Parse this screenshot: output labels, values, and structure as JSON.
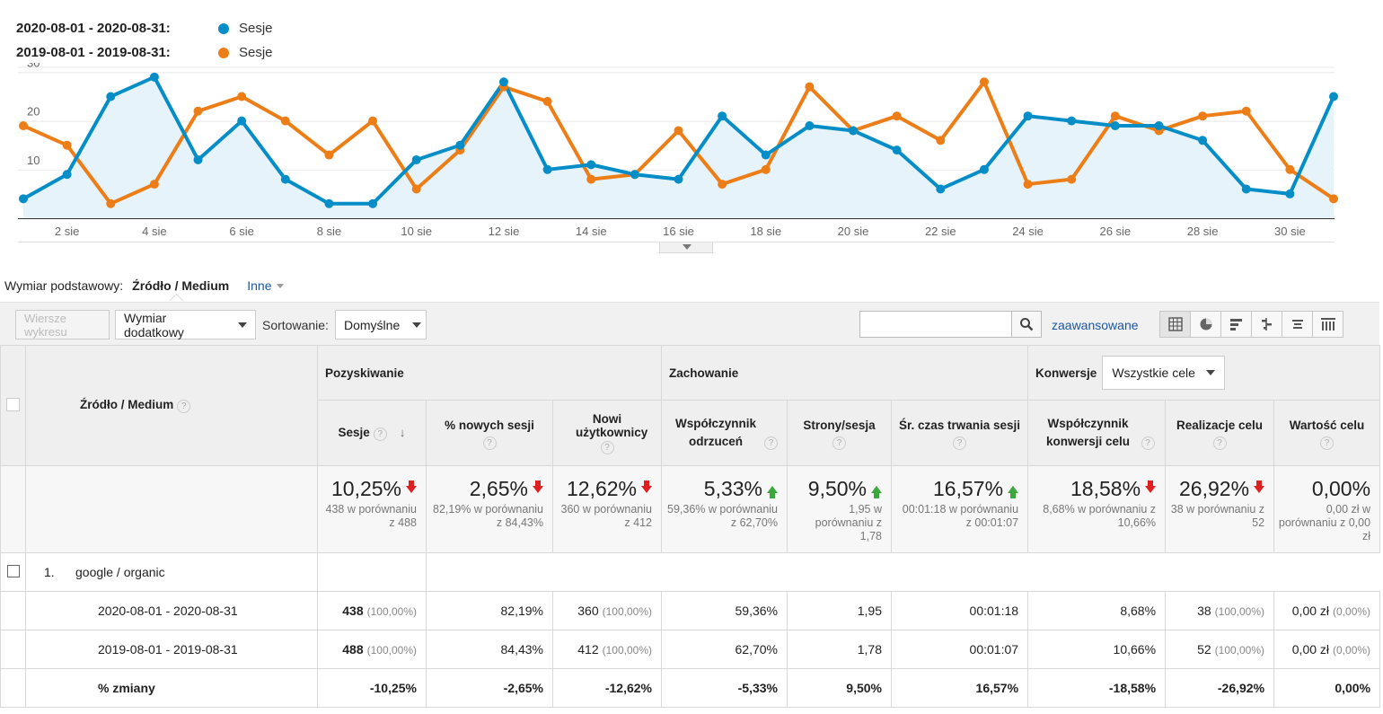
{
  "legend": [
    {
      "range": "2020-08-01 - 2020-08-31:",
      "name": "Sesje",
      "color": "#058dc7"
    },
    {
      "range": "2019-08-01 - 2019-08-31:",
      "name": "Sesje",
      "color": "#ed7e17"
    }
  ],
  "chart_data": {
    "type": "line",
    "x": [
      1,
      2,
      3,
      4,
      5,
      6,
      7,
      8,
      9,
      10,
      11,
      12,
      13,
      14,
      15,
      16,
      17,
      18,
      19,
      20,
      21,
      22,
      23,
      24,
      25,
      26,
      27,
      28,
      29,
      30,
      31
    ],
    "xticks": [
      "2 sie",
      "4 sie",
      "6 sie",
      "8 sie",
      "10 sie",
      "12 sie",
      "14 sie",
      "16 sie",
      "18 sie",
      "20 sie",
      "22 sie",
      "24 sie",
      "26 sie",
      "28 sie",
      "30 sie"
    ],
    "xtick_days": [
      2,
      4,
      6,
      8,
      10,
      12,
      14,
      16,
      18,
      20,
      22,
      24,
      26,
      28,
      30
    ],
    "yticks": [
      10,
      20,
      30
    ],
    "ylim": [
      0,
      31
    ],
    "series": [
      {
        "name": "Sesje",
        "color": "#058dc7",
        "values": [
          4,
          9,
          25,
          29,
          12,
          20,
          8,
          3,
          3,
          12,
          15,
          28,
          10,
          11,
          9,
          8,
          21,
          13,
          19,
          18,
          14,
          6,
          10,
          21,
          20,
          19,
          19,
          16,
          6,
          5,
          25
        ]
      },
      {
        "name": "Sesje",
        "color": "#ed7e17",
        "values": [
          19,
          15,
          3,
          7,
          22,
          25,
          20,
          13,
          20,
          6,
          14,
          27,
          24,
          8,
          9,
          18,
          7,
          10,
          27,
          18,
          21,
          16,
          28,
          7,
          8,
          21,
          18,
          21,
          22,
          10,
          4
        ]
      }
    ]
  },
  "dimension": {
    "label": "Wymiar podstawowy:",
    "active": "Źródło / Medium",
    "other": "Inne"
  },
  "toolbar": {
    "plot_rows": "Wiersze wykresu",
    "secondary": "Wymiar dodatkowy",
    "sort_label": "Sortowanie:",
    "sort_value": "Domyślne",
    "advanced": "zaawansowane",
    "views": [
      "table-icon",
      "pie-icon",
      "bar-icon",
      "comparison-icon",
      "term-cloud-icon",
      "pivot-icon"
    ]
  },
  "table": {
    "dim_header": "Źródło / Medium",
    "groups": {
      "acq": "Pozyskiwanie",
      "beh": "Zachowanie",
      "conv": "Konwersje",
      "conv_select": "Wszystkie cele"
    },
    "cols": [
      "Sesje",
      "% nowych sesji",
      "Nowi użytkownicy",
      "Współczynnik odrzuceń",
      "Strony/sesja",
      "Śr. czas trwania sesji",
      "Współczynnik konwersji celu",
      "Realizacje celu",
      "Wartość celu"
    ],
    "summary": [
      {
        "value": "10,25%",
        "dir": "down",
        "sub": "438 w porównaniu z 488"
      },
      {
        "value": "2,65%",
        "dir": "down",
        "sub": "82,19% w porównaniu z 84,43%"
      },
      {
        "value": "12,62%",
        "dir": "down",
        "sub": "360 w porównaniu z 412"
      },
      {
        "value": "5,33%",
        "dir": "up",
        "sub": "59,36% w porównaniu z 62,70%"
      },
      {
        "value": "9,50%",
        "dir": "up",
        "sub": "1,95 w porównaniu z 1,78"
      },
      {
        "value": "16,57%",
        "dir": "up",
        "sub": "00:01:18 w porównaniu z 00:01:07"
      },
      {
        "value": "18,58%",
        "dir": "down",
        "sub": "8,68% w porównaniu z 10,66%"
      },
      {
        "value": "26,92%",
        "dir": "down",
        "sub": "38 w porównaniu z 52"
      },
      {
        "value": "0,00%",
        "dir": "",
        "sub": "0,00 zł w porównaniu z 0,00 zł"
      }
    ],
    "row_index": "1.",
    "row_name": "google / organic",
    "rows": [
      {
        "label": "2020-08-01 - 2020-08-31",
        "cells": [
          [
            "438",
            "(100,00%)"
          ],
          [
            "82,19%",
            ""
          ],
          [
            "360",
            "(100,00%)"
          ],
          [
            "59,36%",
            ""
          ],
          [
            "1,95",
            ""
          ],
          [
            "00:01:18",
            ""
          ],
          [
            "8,68%",
            ""
          ],
          [
            "38",
            "(100,00%)"
          ],
          [
            "0,00 zł",
            "(0,00%)"
          ]
        ]
      },
      {
        "label": "2019-08-01 - 2019-08-31",
        "cells": [
          [
            "488",
            "(100,00%)"
          ],
          [
            "84,43%",
            ""
          ],
          [
            "412",
            "(100,00%)"
          ],
          [
            "62,70%",
            ""
          ],
          [
            "1,78",
            ""
          ],
          [
            "00:01:07",
            ""
          ],
          [
            "10,66%",
            ""
          ],
          [
            "52",
            "(100,00%)"
          ],
          [
            "0,00 zł",
            "(0,00%)"
          ]
        ]
      }
    ],
    "change_label": "% zmiany",
    "change": [
      "-10,25%",
      "-2,65%",
      "-12,62%",
      "-5,33%",
      "9,50%",
      "16,57%",
      "-18,58%",
      "-26,92%",
      "0,00%"
    ]
  }
}
